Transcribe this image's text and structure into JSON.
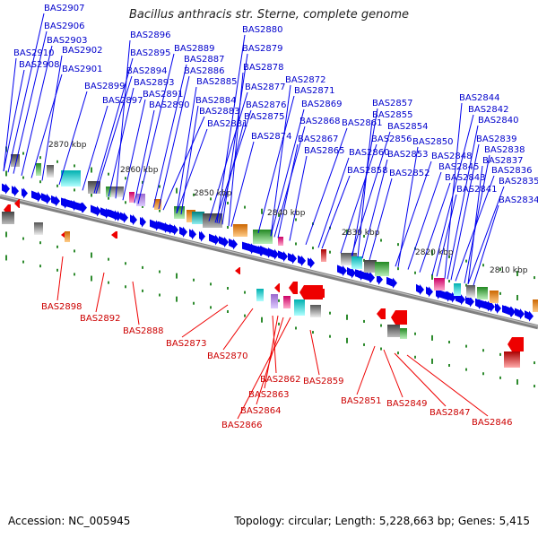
{
  "title": "Bacillus anthracis str. Sterne, complete genome",
  "footer": {
    "accession": "Accession: NC_005945",
    "summary": "Topology: circular; Length: 5,228,663 bp; Genes: 5,415"
  },
  "colors": {
    "forward": "#0000ee",
    "reverse": "#ee0000",
    "backbone": "#808080",
    "forward_label": "#0000cc",
    "reverse_label": "#cc0000",
    "tick": "#2e8b2e"
  },
  "scale_labels": [
    "2870 kbp",
    "2860 kbp",
    "2850 kbp",
    "2840 kbp",
    "2830 kbp",
    "2820 kbp",
    "2810 kbp"
  ],
  "forward_genes": [
    "BAS2907",
    "BAS2906",
    "BAS2903",
    "BAS2902",
    "BAS2910",
    "BAS2908",
    "BAS2901",
    "BAS2899",
    "BAS2897",
    "BAS2896",
    "BAS2895",
    "BAS2894",
    "BAS2893",
    "BAS2891",
    "BAS2890",
    "BAS2889",
    "BAS2887",
    "BAS2886",
    "BAS2885",
    "BAS2884",
    "BAS2883",
    "BAS2881",
    "BAS2880",
    "BAS2879",
    "BAS2878",
    "BAS2877",
    "BAS2876",
    "BAS2875",
    "BAS2874",
    "BAS2872",
    "BAS2871",
    "BAS2869",
    "BAS2868",
    "BAS2867",
    "BAS2865",
    "BAS2861",
    "BAS2860",
    "BAS2858",
    "BAS2857",
    "BAS2855",
    "BAS2854",
    "BAS2856",
    "BAS2853",
    "BAS2852",
    "BAS2850",
    "BAS2848",
    "BAS2845",
    "BAS2843",
    "BAS2841",
    "BAS2844",
    "BAS2842",
    "BAS2840",
    "BAS2839",
    "BAS2838",
    "BAS2837",
    "BAS2836",
    "BAS2835",
    "BAS2834"
  ],
  "reverse_genes": [
    "BAS2898",
    "BAS2892",
    "BAS2888",
    "BAS2873",
    "BAS2870",
    "BAS2862",
    "BAS2863",
    "BAS2864",
    "BAS2866",
    "BAS2859",
    "BAS2851",
    "BAS2849",
    "BAS2847",
    "BAS2846"
  ]
}
